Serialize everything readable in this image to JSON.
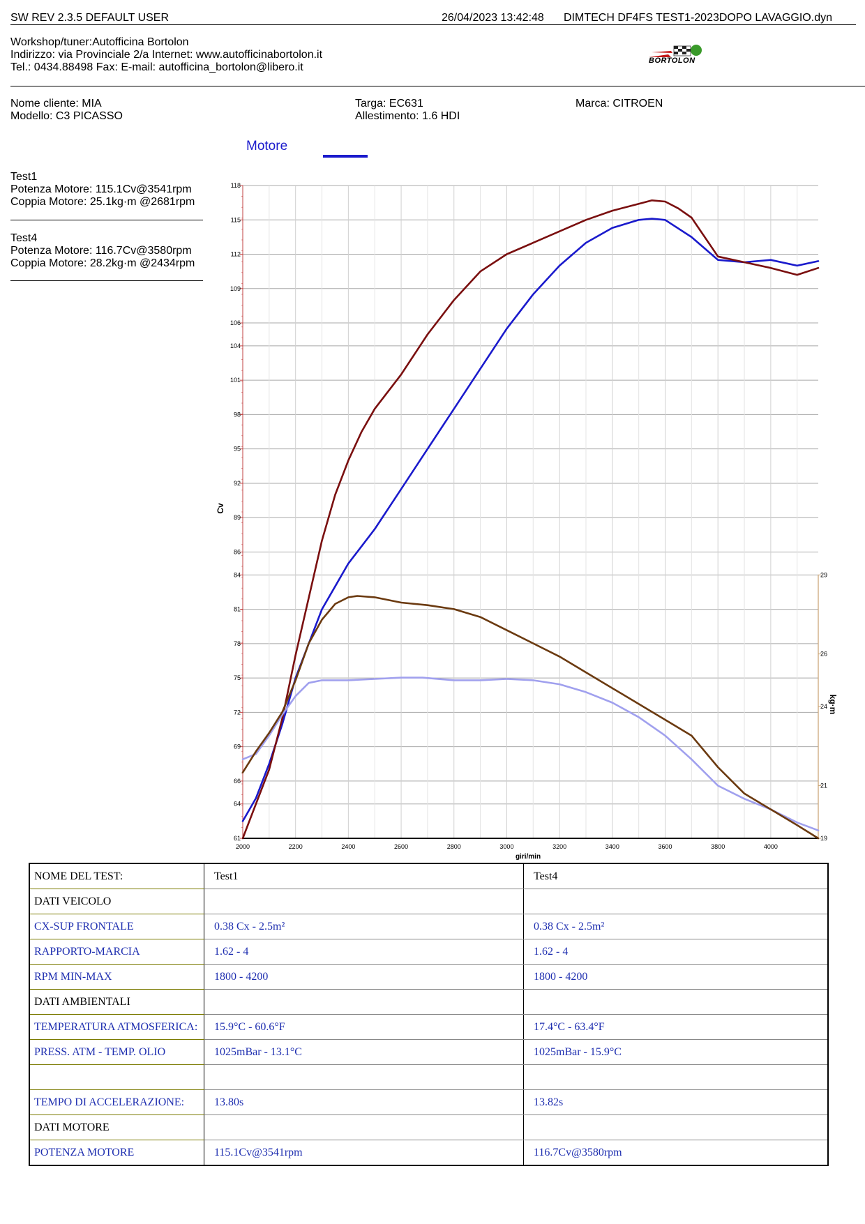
{
  "header": {
    "left": "SW REV 2.3.5   DEFAULT USER",
    "datetime": "26/04/2023 13:42:48",
    "right": "DIMTECH DF4FS   TEST1-2023DOPO LAVAGGIO.dyn"
  },
  "workshop": {
    "line1": "Workshop/tuner:Autofficina Bortolon",
    "line2": "Indirizzo: via Provinciale 2/a Internet: www.autofficinabortolon.it",
    "line3": "Tel.: 0434.88498 Fax:  E-mail: autofficina_bortolon@libero.it",
    "logo_text": "BORTOLON"
  },
  "vehicle": {
    "cliente": "Nome cliente: MIA",
    "modello": "Modello: C3 PICASSO",
    "targa": "Targa: EC631",
    "allestimento": "Allestimento: 1.6 HDI",
    "marca": "Marca: CITROEN"
  },
  "legend": {
    "label": "Motore",
    "color": "#1a1acc"
  },
  "tests": [
    {
      "name": "Test1",
      "potenza": "Potenza Motore: 115.1Cv@3541rpm",
      "coppia": "Coppia Motore: 25.1kg·m @2681rpm"
    },
    {
      "name": "Test4",
      "potenza": "Potenza Motore: 116.7Cv@3580rpm",
      "coppia": "Coppia Motore: 28.2kg·m @2434rpm"
    }
  ],
  "chart_data": {
    "type": "line",
    "xlabel": "giri/min",
    "ylabel": "Cv",
    "y2label": "kg·m",
    "xlim": [
      2000,
      4180
    ],
    "ylim": [
      61,
      118
    ],
    "y2lim": [
      19,
      29
    ],
    "x_ticks": [
      2000,
      2200,
      2400,
      2600,
      2800,
      3000,
      3200,
      3400,
      3600,
      3800,
      4000
    ],
    "y_ticks": [
      61,
      64,
      66,
      69,
      72,
      75,
      78,
      81,
      84,
      86,
      89,
      92,
      95,
      98,
      101,
      104,
      106,
      109,
      112,
      115,
      118
    ],
    "y2_ticks": [
      19,
      21,
      24,
      26,
      29
    ],
    "grid": true,
    "series": [
      {
        "axis": "power",
        "color": "#1a1acc",
        "x": [
          2000,
          2050,
          2100,
          2150,
          2200,
          2250,
          2300,
          2350,
          2400,
          2450,
          2500,
          2600,
          2700,
          2800,
          2900,
          3000,
          3100,
          3200,
          3300,
          3400,
          3500,
          3550,
          3600,
          3700,
          3800,
          3900,
          4000,
          4100,
          4180
        ],
        "y": [
          62.5,
          64.5,
          67.5,
          71.0,
          75.0,
          78.0,
          81.0,
          83.0,
          85.0,
          86.5,
          88.0,
          91.5,
          95.0,
          98.5,
          102.0,
          105.5,
          108.5,
          111.0,
          113.0,
          114.3,
          115.0,
          115.1,
          115.0,
          113.5,
          111.5,
          111.3,
          111.5,
          111.0,
          111.4
        ]
      },
      {
        "axis": "power",
        "color": "#7a0f0f",
        "x": [
          2000,
          2050,
          2100,
          2150,
          2200,
          2250,
          2300,
          2350,
          2400,
          2450,
          2500,
          2600,
          2700,
          2800,
          2900,
          3000,
          3100,
          3200,
          3300,
          3400,
          3500,
          3550,
          3600,
          3650,
          3700,
          3800,
          3900,
          4000,
          4100,
          4180
        ],
        "y": [
          61.0,
          64.0,
          67.0,
          71.5,
          77.0,
          82.0,
          87.0,
          91.0,
          94.0,
          96.5,
          98.5,
          101.5,
          105.0,
          108.0,
          110.5,
          112.0,
          113.0,
          114.0,
          115.0,
          115.8,
          116.4,
          116.7,
          116.6,
          116.0,
          115.2,
          111.8,
          111.3,
          110.8,
          110.2,
          110.8
        ]
      },
      {
        "axis": "torque",
        "color": "#a0a0ee",
        "x": [
          2000,
          2050,
          2100,
          2150,
          2200,
          2250,
          2300,
          2400,
          2500,
          2600,
          2681,
          2800,
          2900,
          3000,
          3100,
          3200,
          3300,
          3400,
          3500,
          3600,
          3700,
          3800,
          3900,
          4000,
          4100,
          4180
        ],
        "y": [
          22.0,
          22.2,
          22.9,
          23.7,
          24.4,
          24.9,
          25.0,
          25.0,
          25.05,
          25.1,
          25.1,
          25.0,
          25.0,
          25.05,
          25.0,
          24.85,
          24.55,
          24.15,
          23.6,
          22.9,
          22.0,
          21.0,
          20.5,
          20.1,
          19.6,
          19.3
        ]
      },
      {
        "axis": "torque",
        "color": "#6b3a10",
        "x": [
          2000,
          2050,
          2100,
          2150,
          2200,
          2250,
          2300,
          2350,
          2400,
          2434,
          2500,
          2600,
          2700,
          2800,
          2900,
          3000,
          3100,
          3200,
          3300,
          3400,
          3500,
          3600,
          3700,
          3800,
          3900,
          4000,
          4100,
          4180
        ],
        "y": [
          21.5,
          22.3,
          23.0,
          23.8,
          25.0,
          26.4,
          27.3,
          27.9,
          28.15,
          28.2,
          28.15,
          27.95,
          27.85,
          27.7,
          27.4,
          26.9,
          26.4,
          25.9,
          25.3,
          24.7,
          24.1,
          23.5,
          22.9,
          21.7,
          20.7,
          20.1,
          19.5,
          19.0
        ]
      }
    ]
  },
  "table": {
    "rows": [
      {
        "kind": "head",
        "label": "NOME DEL TEST:",
        "v1": "Test1",
        "v2": "Test4"
      },
      {
        "kind": "sect",
        "label": "DATI VEICOLO",
        "v1": "",
        "v2": ""
      },
      {
        "kind": "blue",
        "label": "CX-SUP FRONTALE",
        "v1": "0.38 Cx - 2.5m²",
        "v2": "0.38 Cx - 2.5m²"
      },
      {
        "kind": "blue",
        "label": "RAPPORTO-MARCIA",
        "v1": "1.62 - 4",
        "v2": "1.62 - 4"
      },
      {
        "kind": "blue",
        "label": "RPM MIN-MAX",
        "v1": "1800 - 4200",
        "v2": "1800 - 4200"
      },
      {
        "kind": "sect",
        "label": "DATI AMBIENTALI",
        "v1": "",
        "v2": ""
      },
      {
        "kind": "blue",
        "label": "TEMPERATURA ATMOSFERICA:",
        "v1": "15.9°C - 60.6°F",
        "v2": "17.4°C - 63.4°F"
      },
      {
        "kind": "blue",
        "label": "PRESS. ATM - TEMP. OLIO",
        "v1": "1025mBar - 13.1°C",
        "v2": "1025mBar - 15.9°C"
      },
      {
        "kind": "blue",
        "label": "",
        "v1": "",
        "v2": ""
      },
      {
        "kind": "blue",
        "label": "TEMPO DI ACCELERAZIONE:",
        "v1": " 13.80s",
        "v2": " 13.82s"
      },
      {
        "kind": "sect",
        "label": "DATI MOTORE",
        "v1": "",
        "v2": ""
      },
      {
        "kind": "blue",
        "label": "POTENZA MOTORE",
        "v1": "115.1Cv@3541rpm",
        "v2": "116.7Cv@3580rpm"
      }
    ]
  }
}
